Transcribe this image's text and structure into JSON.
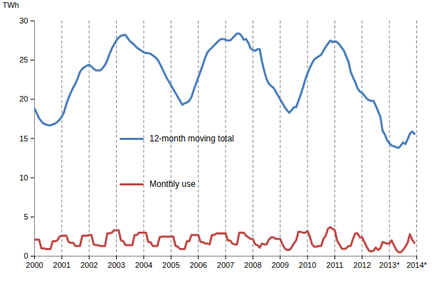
{
  "chart_data": {
    "type": "line",
    "y_label": "TWh",
    "categories": [
      "2000",
      null,
      null,
      null,
      null,
      null,
      null,
      null,
      null,
      null,
      null,
      null,
      "2001",
      null,
      null,
      null,
      null,
      null,
      null,
      null,
      null,
      null,
      null,
      null,
      "2002",
      null,
      null,
      null,
      null,
      null,
      null,
      null,
      null,
      null,
      null,
      null,
      "2003",
      null,
      null,
      null,
      null,
      null,
      null,
      null,
      null,
      null,
      null,
      null,
      "2004",
      null,
      null,
      null,
      null,
      null,
      null,
      null,
      null,
      null,
      null,
      null,
      "2005",
      null,
      null,
      null,
      null,
      null,
      null,
      null,
      null,
      null,
      null,
      null,
      "2006",
      null,
      null,
      null,
      null,
      null,
      null,
      null,
      null,
      null,
      null,
      null,
      "2007",
      null,
      null,
      null,
      null,
      null,
      null,
      null,
      null,
      null,
      null,
      null,
      "2008",
      null,
      null,
      null,
      null,
      null,
      null,
      null,
      null,
      null,
      null,
      null,
      "2009",
      null,
      null,
      null,
      null,
      null,
      null,
      null,
      null,
      null,
      null,
      null,
      "2010",
      null,
      null,
      null,
      null,
      null,
      null,
      null,
      null,
      null,
      null,
      null,
      "2011",
      null,
      null,
      null,
      null,
      null,
      null,
      null,
      null,
      null,
      null,
      null,
      "2012",
      null,
      null,
      null,
      null,
      null,
      null,
      null,
      null,
      null,
      null,
      null,
      "2013*",
      null,
      null,
      null,
      null,
      null,
      null,
      null,
      null,
      null,
      null,
      null,
      "2014*"
    ],
    "series": [
      {
        "name": "12-month moving total",
        "color": "#4a7ebb",
        "values": [
          18.8,
          18.2,
          17.6,
          17.2,
          16.9,
          16.8,
          16.7,
          16.7,
          16.8,
          16.9,
          17.1,
          17.4,
          17.8,
          18.4,
          19.4,
          20.2,
          20.9,
          21.5,
          22.0,
          22.7,
          23.5,
          23.9,
          24.1,
          24.3,
          24.4,
          24.2,
          23.9,
          23.7,
          23.7,
          23.7,
          24.0,
          24.4,
          25.0,
          25.8,
          26.5,
          27.0,
          27.5,
          27.9,
          28.1,
          28.2,
          28.2,
          27.8,
          27.4,
          27.2,
          26.9,
          26.6,
          26.4,
          26.2,
          26.0,
          25.9,
          25.9,
          25.8,
          25.6,
          25.4,
          25.1,
          24.6,
          24.0,
          23.4,
          22.8,
          22.3,
          21.8,
          21.3,
          20.8,
          20.3,
          19.8,
          19.3,
          19.5,
          19.6,
          19.8,
          20.3,
          21.2,
          22.0,
          22.8,
          23.6,
          24.4,
          25.3,
          26.0,
          26.3,
          26.6,
          26.9,
          27.2,
          27.5,
          27.7,
          27.7,
          27.6,
          27.5,
          27.5,
          27.8,
          28.1,
          28.4,
          28.4,
          28.1,
          27.6,
          27.7,
          27.2,
          26.5,
          26.3,
          26.2,
          26.4,
          26.4,
          24.8,
          23.6,
          22.6,
          22.0,
          21.7,
          21.5,
          21.0,
          20.5,
          20.0,
          19.5,
          19.0,
          18.6,
          18.3,
          18.6,
          19.0,
          19.0,
          19.8,
          20.6,
          21.5,
          22.5,
          23.3,
          24.0,
          24.6,
          25.1,
          25.3,
          25.5,
          25.7,
          26.2,
          26.7,
          27.1,
          27.5,
          27.3,
          27.4,
          27.3,
          27.0,
          26.6,
          26.2,
          25.5,
          24.8,
          23.5,
          22.8,
          22.2,
          21.4,
          21.0,
          20.8,
          20.5,
          20.1,
          19.9,
          19.8,
          19.8,
          19.2,
          18.5,
          17.8,
          16.0,
          15.5,
          14.8,
          14.4,
          14.1,
          14.0,
          13.9,
          13.8,
          14.1,
          14.5,
          14.3,
          14.9,
          15.6,
          15.9,
          15.6,
          null
        ]
      },
      {
        "name": "Monthly use",
        "color": "#be4b48",
        "values": [
          2.1,
          2.1,
          2.1,
          1.0,
          1.0,
          0.9,
          0.9,
          0.9,
          1.9,
          1.9,
          2.0,
          2.5,
          2.6,
          2.6,
          2.6,
          1.8,
          1.7,
          1.7,
          1.3,
          1.3,
          1.3,
          2.6,
          2.6,
          2.6,
          2.7,
          2.7,
          1.5,
          1.4,
          1.4,
          1.3,
          1.3,
          1.3,
          2.9,
          2.9,
          3.0,
          3.3,
          3.3,
          3.3,
          2.0,
          1.9,
          1.4,
          1.4,
          1.4,
          1.4,
          2.7,
          2.7,
          3.0,
          3.0,
          3.0,
          3.0,
          1.8,
          1.8,
          1.3,
          1.3,
          1.3,
          2.4,
          2.5,
          2.5,
          2.5,
          2.5,
          2.5,
          2.5,
          1.3,
          1.2,
          0.9,
          0.9,
          0.9,
          1.9,
          1.9,
          2.7,
          2.7,
          2.7,
          2.7,
          1.8,
          1.8,
          1.6,
          1.6,
          1.5,
          2.7,
          2.7,
          2.9,
          2.9,
          2.9,
          2.9,
          2.9,
          2.0,
          2.0,
          1.6,
          1.5,
          1.5,
          3.0,
          3.0,
          3.0,
          2.6,
          2.4,
          2.2,
          2.2,
          1.5,
          1.4,
          1.1,
          1.6,
          1.5,
          1.5,
          2.1,
          2.4,
          2.4,
          2.2,
          2.2,
          2.2,
          1.5,
          1.0,
          0.8,
          0.8,
          1.1,
          1.6,
          2.0,
          3.1,
          3.1,
          3.0,
          3.0,
          3.2,
          2.5,
          1.5,
          1.2,
          1.2,
          1.3,
          1.3,
          2.2,
          2.6,
          3.5,
          3.7,
          3.5,
          3.3,
          2.0,
          1.5,
          1.0,
          0.9,
          1.0,
          1.3,
          1.3,
          2.2,
          2.9,
          2.9,
          2.4,
          2.4,
          1.8,
          1.2,
          0.7,
          0.6,
          0.7,
          1.1,
          0.8,
          1.0,
          1.8,
          1.7,
          1.6,
          1.6,
          2.0,
          1.4,
          0.8,
          0.5,
          0.5,
          0.8,
          1.2,
          1.7,
          2.8,
          2.1,
          1.7,
          null
        ]
      }
    ],
    "ylim": [
      0,
      30
    ],
    "yticks": [
      0,
      5,
      10,
      15,
      20,
      25,
      30
    ],
    "grid": "x",
    "legend": "left"
  }
}
